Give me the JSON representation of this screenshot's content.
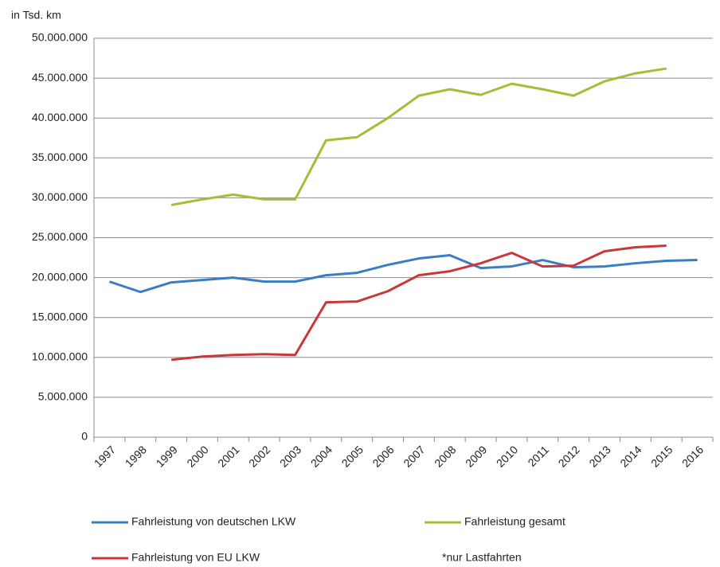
{
  "chart_data": {
    "type": "line",
    "y_label": "in Tsd. km",
    "categories": [
      "1997",
      "1998",
      "1999",
      "2000",
      "2001",
      "2002",
      "2003",
      "2004",
      "2005",
      "2006",
      "2007",
      "2008",
      "2009",
      "2010",
      "2011",
      "2012",
      "2013",
      "2014",
      "2015",
      "2016"
    ],
    "series": [
      {
        "name": "Fahrleistung von deutschen LKW",
        "color": "#3b7dc4",
        "values": [
          19500000,
          18200000,
          19400000,
          19700000,
          20000000,
          19500000,
          19500000,
          20300000,
          20600000,
          21600000,
          22400000,
          22800000,
          21200000,
          21400000,
          22200000,
          21300000,
          21400000,
          21800000,
          22100000,
          22200000
        ]
      },
      {
        "name": "Fahrleistung gesamt",
        "color": "#a8bc3a",
        "values": [
          null,
          null,
          29100000,
          29800000,
          30400000,
          29800000,
          29800000,
          37200000,
          37600000,
          40000000,
          42800000,
          43600000,
          42900000,
          44300000,
          43600000,
          42800000,
          44600000,
          45600000,
          46200000,
          null
        ]
      },
      {
        "name": "Fahrleistung von EU LKW",
        "color": "#c8383a",
        "values": [
          null,
          null,
          9700000,
          10100000,
          10300000,
          10400000,
          10300000,
          16900000,
          17000000,
          18300000,
          20300000,
          20800000,
          21800000,
          23100000,
          21400000,
          21500000,
          23300000,
          23800000,
          24000000,
          null
        ]
      }
    ],
    "annotation": "*nur Lastfahrten",
    "ylim": [
      0,
      50000000
    ],
    "yticks": [
      0,
      {
        "value": 5000000,
        "label": "5.000.000"
      },
      {
        "value": 10000000,
        "label": "10.000.000"
      },
      {
        "value": 15000000,
        "label": "15.000.000"
      },
      {
        "value": 20000000,
        "label": "20.000.000"
      },
      {
        "value": 25000000,
        "label": "25.000.000"
      },
      {
        "value": 30000000,
        "label": "30.000.000"
      },
      {
        "value": 35000000,
        "label": "35.000.000"
      },
      {
        "value": 40000000,
        "label": "40.000.000"
      },
      {
        "value": 45000000,
        "label": "45.000.000"
      },
      {
        "value": 50000000,
        "label": "50.000.000"
      }
    ],
    "grid": true
  }
}
